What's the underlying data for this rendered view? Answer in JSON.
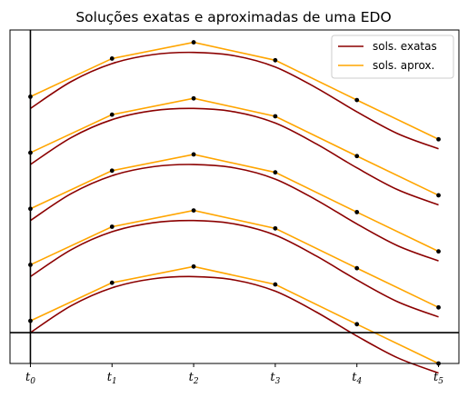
{
  "chart_data": {
    "type": "line",
    "title": "Soluções exatas e aproximadas de uma EDO",
    "xlabel": "",
    "ylabel": "",
    "x_ticks": [
      {
        "base": "t",
        "sub": "0"
      },
      {
        "base": "t",
        "sub": "1"
      },
      {
        "base": "t",
        "sub": "2"
      },
      {
        "base": "t",
        "sub": "3"
      },
      {
        "base": "t",
        "sub": "4"
      },
      {
        "base": "t",
        "sub": "5"
      }
    ],
    "y_ticks": [],
    "xlim": [
      -0.25,
      5.25
    ],
    "ylim": [
      -0.55,
      5.4
    ],
    "grid": false,
    "axis_lines": {
      "x": 0,
      "y": 0
    },
    "legend_position": "top-right",
    "legend": [
      {
        "label": "sols. exatas",
        "color": "#8b0000"
      },
      {
        "label": "sols. aprox.",
        "color": "#ffa500"
      }
    ],
    "series_styles": {
      "exact": {
        "color": "#8b0000"
      },
      "approx": {
        "color": "#ffa500",
        "marker_color": "#000000"
      }
    },
    "exact_solutions": {
      "x_range": [
        0,
        5
      ],
      "samples": 61,
      "base_curve": [
        {
          "x": 0.0,
          "y": 0.0
        },
        {
          "x": 0.5,
          "y": 0.48
        },
        {
          "x": 1.0,
          "y": 0.8
        },
        {
          "x": 1.5,
          "y": 0.96
        },
        {
          "x": 2.0,
          "y": 1.0
        },
        {
          "x": 2.5,
          "y": 0.94
        },
        {
          "x": 3.0,
          "y": 0.74
        },
        {
          "x": 3.5,
          "y": 0.37
        },
        {
          "x": 4.0,
          "y": -0.06
        },
        {
          "x": 4.5,
          "y": -0.45
        },
        {
          "x": 5.0,
          "y": -0.72
        }
      ],
      "offsets": [
        0,
        1,
        2,
        3,
        4
      ]
    },
    "approx_solutions": [
      {
        "x": [
          0,
          1,
          2,
          3,
          4,
          5
        ],
        "y": [
          0.21,
          0.89,
          1.18,
          0.86,
          0.15,
          -0.55
        ]
      },
      {
        "x": [
          0,
          1,
          2,
          3,
          4,
          5
        ],
        "y": [
          1.21,
          1.89,
          2.18,
          1.86,
          1.15,
          0.45
        ]
      },
      {
        "x": [
          0,
          1,
          2,
          3,
          4,
          5
        ],
        "y": [
          2.21,
          2.89,
          3.18,
          2.86,
          2.15,
          1.45
        ]
      },
      {
        "x": [
          0,
          1,
          2,
          3,
          4,
          5
        ],
        "y": [
          3.21,
          3.89,
          4.18,
          3.86,
          3.15,
          2.45
        ]
      },
      {
        "x": [
          0,
          1,
          2,
          3,
          4,
          5
        ],
        "y": [
          4.21,
          4.89,
          5.18,
          4.86,
          4.15,
          3.45
        ]
      }
    ]
  }
}
